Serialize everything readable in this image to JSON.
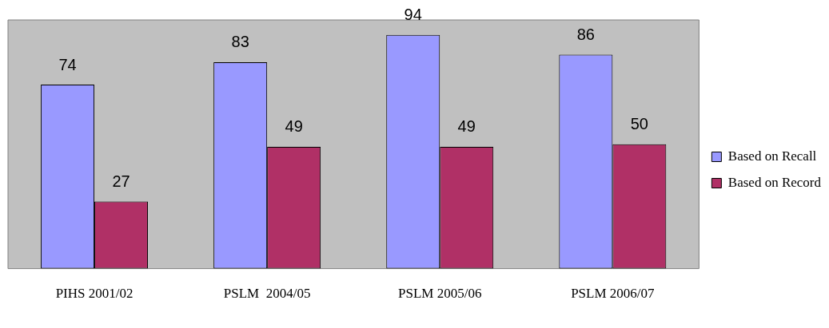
{
  "chart_data": {
    "type": "bar",
    "categories": [
      "PIHS 2001/02",
      "PSLM  2004/05",
      "PSLM 2005/06",
      "PSLM 2006/07"
    ],
    "series": [
      {
        "name": "Based on Recall",
        "color": "#9999ff",
        "values": [
          74,
          83,
          94,
          86
        ]
      },
      {
        "name": "Based on Record",
        "color": "#b03066",
        "values": [
          27,
          49,
          49,
          50
        ]
      }
    ],
    "ylim": [
      0,
      100
    ],
    "tick_labels": "x",
    "grid": false,
    "legend": "right",
    "data_labels": true
  }
}
